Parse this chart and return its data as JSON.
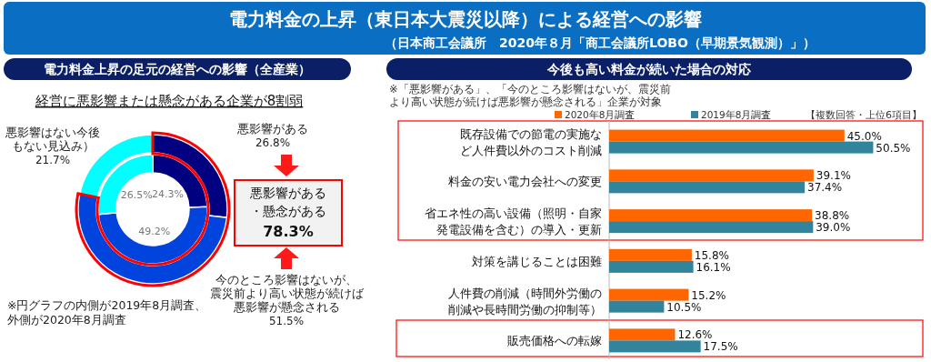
{
  "chart_data": [
    {
      "type": "other",
      "title": "電力料金の上昇（東日本大震災以降）による経営への影響",
      "subtitle": "（日本商工会議所　2020年８月「商工会議所LOBO（早期景気観測）」）"
    },
    {
      "type": "donut",
      "title": "電力料金上昇の足元の経営への影響（全産業）",
      "subtitle": "経営に悪影響または懸念がある企業が8割弱",
      "categories": [
        "悪影響がある",
        "今のところ影響はないが、震災前より高い状態が続けば悪影響が懸念される",
        "悪影響はない今後もない見込み）"
      ],
      "colors": [
        "#000080",
        "#0044dd",
        "#00ffff"
      ],
      "series": [
        {
          "values": [
            24.3,
            49.2,
            26.5
          ],
          "value_labels": [
            "24.3%",
            "49.2%",
            "26.5%"
          ]
        },
        {
          "values": [
            26.8,
            51.5,
            21.7
          ],
          "value_labels": [
            "26.8%",
            "51.5%",
            "21.7%"
          ]
        }
      ],
      "annotations": [
        "悪影響がある・懸念がある",
        "78.3%",
        "※円グラフの内側が2019年8月調査、外側が2020年8月調査"
      ]
    },
    {
      "type": "bar",
      "orientation": "horizontal",
      "title": "今後も高い料金が続いた場合の対応",
      "categories": [
        "既存設備での節電の実施など人件費以外のコスト削減",
        "料金の安い電力会社への変更",
        "省エネ性の高い設備（照明・自家発電設備を含む）の導入・更新",
        "対策を講じることは困難",
        "人件費の削減（時間外労働の削減や長時間労働の抑制等）",
        "販売価格への転嫁"
      ],
      "legend": "top",
      "series": [
        {
          "name": "2020年8月調査",
          "color": "#ff6600",
          "values": [
            45.0,
            39.1,
            38.8,
            15.8,
            15.2,
            12.6
          ],
          "value_labels": [
            "45.0%",
            "39.1%",
            "38.8%",
            "15.8%",
            "15.2%",
            "12.6%"
          ]
        },
        {
          "name": "2019年8月調査",
          "color": "#31849b",
          "values": [
            50.5,
            37.4,
            39.0,
            16.1,
            10.5,
            17.5
          ],
          "value_labels": [
            "50.5%",
            "37.4%",
            "39.0%",
            "16.1%",
            "10.5%",
            "17.5%"
          ]
        }
      ],
      "annotations": [
        "※「悪影響がある」、「今のところ影響はないが、震災前より高い状態が続けば悪影響が懸念される」企業が対象",
        "【複数回答・上位6項目】"
      ]
    }
  ]
}
